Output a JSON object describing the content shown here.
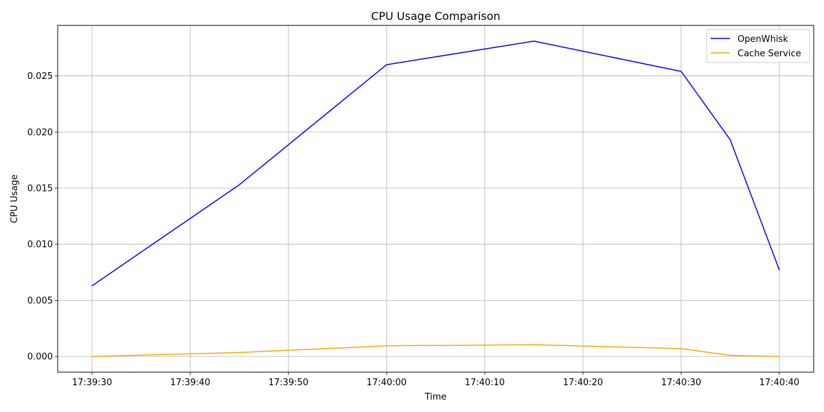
{
  "chart_data": {
    "type": "line",
    "title": "CPU Usage Comparison",
    "xlabel": "Time",
    "ylabel": "CPU Usage",
    "grid": true,
    "legend_position": "top-right",
    "x_ticks": [
      "17:39:30",
      "17:39:40",
      "17:39:50",
      "17:40:00",
      "17:40:10",
      "17:40:20",
      "17:40:30",
      "17:40:40"
    ],
    "y_ticks": [
      "0.000",
      "0.005",
      "0.010",
      "0.015",
      "0.020",
      "0.025"
    ],
    "xlim": [
      "17:39:26.5",
      "17:40:43.5"
    ],
    "ylim": [
      -0.0014,
      0.0295
    ],
    "x": [
      "17:39:30",
      "17:39:45",
      "17:40:00",
      "17:40:15",
      "17:40:30",
      "17:40:35",
      "17:40:40"
    ],
    "series": [
      {
        "name": "OpenWhisk",
        "color": "#0000ff",
        "values": [
          0.0063,
          0.0153,
          0.026,
          0.0281,
          0.0254,
          0.0193,
          0.0077
        ]
      },
      {
        "name": "Cache Service",
        "color": "#ffa500",
        "values": [
          0.0,
          0.00035,
          0.00095,
          0.00105,
          0.0007,
          0.0001,
          0.0
        ]
      }
    ]
  }
}
